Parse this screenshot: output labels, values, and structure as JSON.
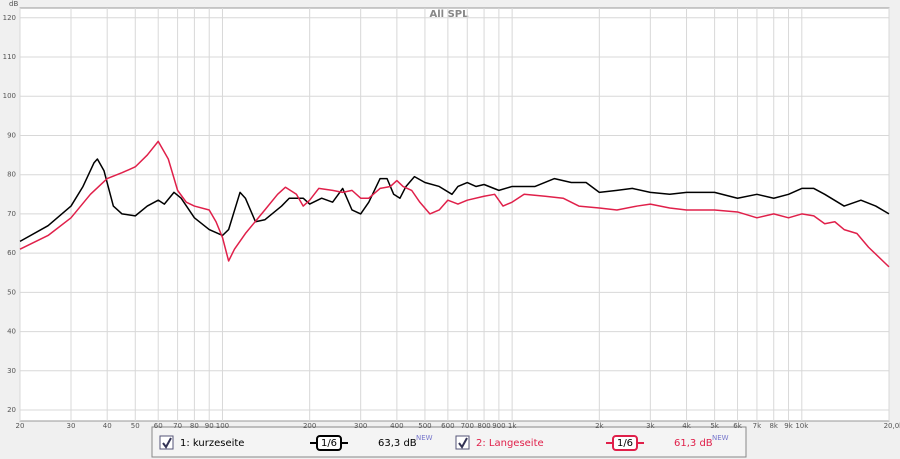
{
  "chart_data": {
    "type": "line",
    "title": "All SPL",
    "y_label": "dB",
    "xscale": "log",
    "grid": true,
    "xlim": [
      20,
      20000
    ],
    "ylim": [
      17.2,
      122.5
    ],
    "xticks": [
      20,
      30,
      40,
      50,
      60,
      70,
      80,
      90,
      100,
      200,
      300,
      400,
      500,
      600,
      700,
      800,
      900,
      {
        "value": 1000,
        "label": "1k"
      },
      {
        "value": 2000,
        "label": "2k"
      },
      {
        "value": 3000,
        "label": "3k"
      },
      {
        "value": 4000,
        "label": "4k"
      },
      {
        "value": 5000,
        "label": "5k"
      },
      {
        "value": 6000,
        "label": "6k"
      },
      {
        "value": 7000,
        "label": "7k"
      },
      {
        "value": 8000,
        "label": "8k"
      },
      {
        "value": 9000,
        "label": "9k"
      },
      {
        "value": 10000,
        "label": "10k"
      },
      {
        "value": 20000,
        "label": "20,0k Hz"
      }
    ],
    "yticks": [
      20,
      30,
      40,
      50,
      60,
      70,
      80,
      90,
      100,
      110,
      120
    ],
    "series": [
      {
        "name": "1: kurzeseite",
        "color": "#000000",
        "smoothing": "1/6",
        "level": "63,3 dB",
        "badge": "NEW",
        "x": [
          20,
          25,
          30,
          33,
          36,
          37,
          39,
          42,
          45,
          50,
          55,
          60,
          63,
          68,
          72,
          80,
          90,
          100,
          105,
          115,
          120,
          130,
          140,
          160,
          170,
          190,
          200,
          220,
          240,
          260,
          280,
          300,
          320,
          350,
          370,
          390,
          410,
          430,
          460,
          500,
          560,
          620,
          650,
          700,
          750,
          800,
          900,
          1000,
          1200,
          1400,
          1600,
          1800,
          2000,
          2300,
          2600,
          3000,
          3500,
          4000,
          5000,
          6000,
          7000,
          8000,
          9000,
          10000,
          11000,
          12000,
          14000,
          16000,
          18000,
          20000
        ],
        "values": [
          63,
          67,
          72,
          77,
          83,
          84,
          81,
          72,
          70,
          69.5,
          72,
          73.5,
          72.5,
          75.5,
          74,
          69,
          66,
          64.5,
          66,
          75.5,
          74,
          68,
          68.5,
          72,
          74,
          74,
          72.5,
          74,
          73,
          76.5,
          71,
          70,
          73,
          79,
          79,
          75,
          74,
          77,
          79.5,
          78,
          77,
          75,
          77,
          78,
          77,
          77.5,
          76,
          77,
          77,
          79,
          78,
          78,
          75.5,
          76,
          76.5,
          75.5,
          75,
          75.5,
          75.5,
          74,
          75,
          74,
          75,
          76.5,
          76.5,
          75,
          72,
          73.5,
          72,
          70
        ]
      },
      {
        "name": "2: Langeseite",
        "color": "#e0204a",
        "smoothing": "1/6",
        "level": "61,3 dB",
        "badge": "NEW",
        "x": [
          20,
          25,
          30,
          35,
          40,
          45,
          50,
          55,
          60,
          65,
          70,
          75,
          80,
          90,
          95,
          100,
          105,
          110,
          120,
          140,
          155,
          165,
          180,
          190,
          200,
          215,
          240,
          260,
          280,
          300,
          320,
          350,
          380,
          400,
          420,
          450,
          480,
          520,
          560,
          600,
          650,
          700,
          800,
          870,
          930,
          1000,
          1100,
          1300,
          1500,
          1700,
          2000,
          2300,
          2700,
          3000,
          3500,
          4000,
          5000,
          6000,
          7000,
          8000,
          9000,
          10000,
          11000,
          12000,
          13000,
          14000,
          15500,
          17000,
          20000
        ],
        "values": [
          61,
          64.5,
          69,
          75,
          79,
          80.5,
          82,
          85,
          88.5,
          84,
          76,
          73,
          72,
          71,
          68,
          64,
          58,
          61,
          65,
          71,
          75,
          76.8,
          75,
          72,
          73.5,
          76.5,
          76,
          75.5,
          76,
          74,
          74,
          76.5,
          77,
          78.5,
          77,
          76,
          73,
          70,
          71,
          73.5,
          72.5,
          73.5,
          74.5,
          75,
          72,
          73,
          75,
          74.5,
          74,
          72,
          71.5,
          71,
          72,
          72.5,
          71.5,
          71,
          71,
          70.5,
          69,
          70,
          69,
          70,
          69.5,
          67.5,
          68,
          66,
          65,
          61.5,
          56.5
        ]
      }
    ]
  }
}
